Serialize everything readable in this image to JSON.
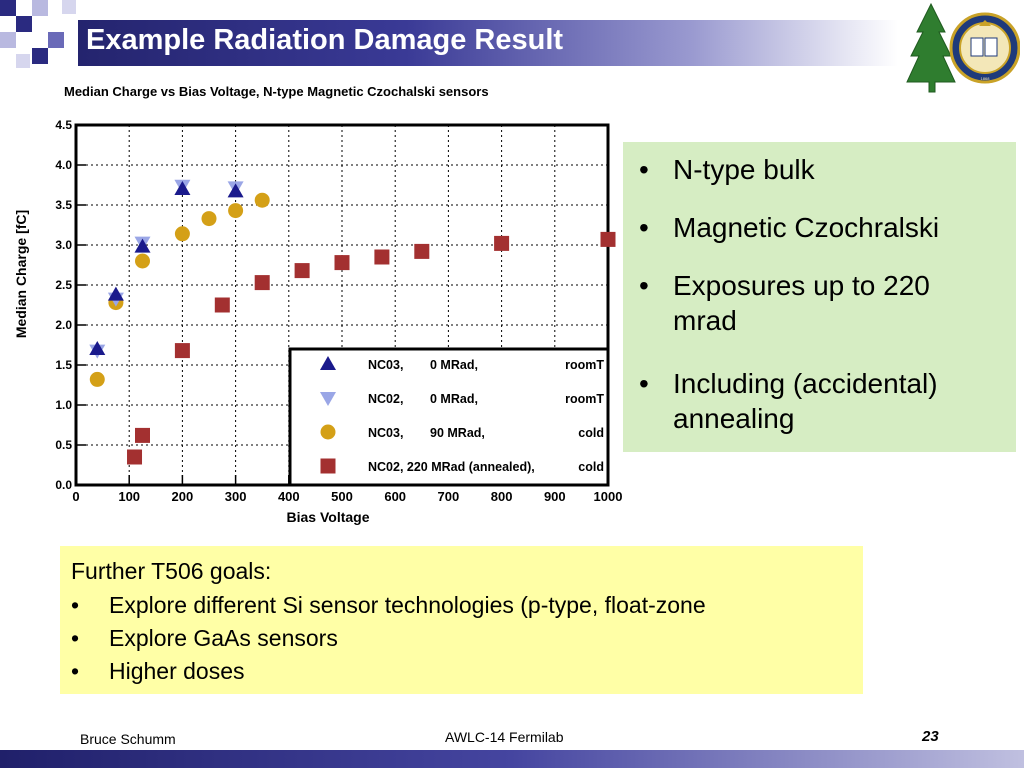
{
  "slide": {
    "title": "Example Radiation Damage Result",
    "footer_left": "Bruce Schumm",
    "footer_center": "AWLC-14 Fermilab",
    "footer_page": "23"
  },
  "logo": {
    "icon": "university-seal-with-tree",
    "seal_text": "UNIVERSITY OF CALIFORNIA",
    "seal_year": "1868"
  },
  "bullets": {
    "items": [
      "N-type bulk",
      "Magnetic Czochralski",
      "Exposures up to 220",
      "mrad",
      "Including (accidental)",
      "annealing"
    ],
    "bullet_char": "•"
  },
  "goals": {
    "heading": "Further T506 goals:",
    "bullet_char": "•",
    "items": [
      "Explore different Si sensor technologies (p-type, float-zone",
      "Explore GaAs sensors",
      "Higher doses"
    ]
  },
  "colors": {
    "title_bar": "#24246e",
    "bullet_box_bg": "#d6edc3",
    "goals_box_bg": "#ffffa6",
    "series_nc03_0": "#1a1a8c",
    "series_nc02_0": "#9aa6e6",
    "series_nc03_90": "#d4a017",
    "series_nc02_220": "#a33030"
  },
  "chart_data": {
    "type": "scatter",
    "title": "Median Charge vs Bias Voltage, N-type Magnetic Czochalski sensors",
    "xlabel": "Bias Voltage",
    "ylabel": "Median Charge [fC]",
    "xlim": [
      0,
      1000
    ],
    "ylim": [
      0,
      4.5
    ],
    "grid": true,
    "legend_position": "bottom-right",
    "x_ticks": [
      "0",
      "100",
      "200",
      "300",
      "400",
      "500",
      "600",
      "700",
      "800",
      "900",
      "1000"
    ],
    "y_ticks": [
      "0.0",
      "0.5",
      "1.0",
      "1.5",
      "2.0",
      "2.5",
      "3.0",
      "3.5",
      "4.0",
      "4.5"
    ],
    "series": [
      {
        "label": "NC03,",
        "dose": "0 MRad,",
        "cond": "roomT",
        "marker": "triangle-up",
        "color": "#1a1a8c",
        "points": [
          [
            40,
            1.7
          ],
          [
            75,
            2.38
          ],
          [
            125,
            2.98
          ],
          [
            200,
            3.7
          ],
          [
            300,
            3.67
          ]
        ]
      },
      {
        "label": "NC02,",
        "dose": "0 MRad,",
        "cond": "roomT",
        "marker": "triangle-down",
        "color": "#9aa6e6",
        "points": [
          [
            40,
            1.68
          ],
          [
            75,
            2.33
          ],
          [
            125,
            3.03
          ],
          [
            200,
            3.74
          ],
          [
            300,
            3.72
          ]
        ]
      },
      {
        "label": "NC03,",
        "dose": "90 MRad,",
        "cond": "cold",
        "marker": "circle",
        "color": "#d4a017",
        "points": [
          [
            40,
            1.32
          ],
          [
            75,
            2.28
          ],
          [
            125,
            2.8
          ],
          [
            200,
            3.14
          ],
          [
            250,
            3.33
          ],
          [
            300,
            3.43
          ],
          [
            350,
            3.56
          ]
        ]
      },
      {
        "label": "NC02, 220 MRad (annealed),",
        "dose": "",
        "cond": "cold",
        "marker": "square",
        "color": "#a33030",
        "points": [
          [
            110,
            0.35
          ],
          [
            125,
            0.62
          ],
          [
            200,
            1.68
          ],
          [
            275,
            2.25
          ],
          [
            350,
            2.53
          ],
          [
            425,
            2.68
          ],
          [
            500,
            2.78
          ],
          [
            575,
            2.85
          ],
          [
            650,
            2.92
          ],
          [
            800,
            3.02
          ],
          [
            1000,
            3.07
          ]
        ]
      }
    ]
  }
}
